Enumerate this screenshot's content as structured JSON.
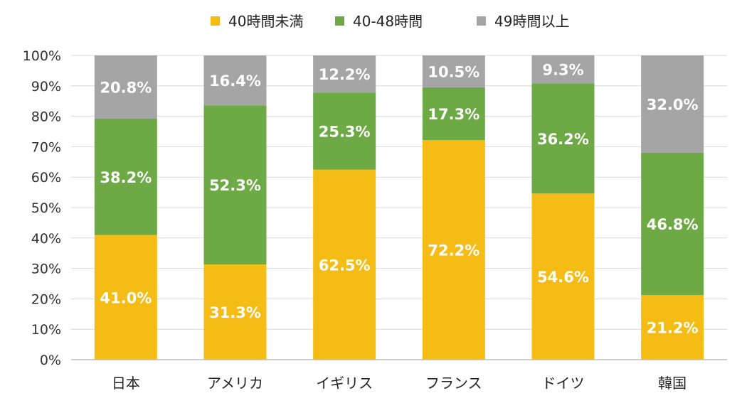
{
  "chart_data": {
    "type": "bar",
    "stacked": true,
    "percent": true,
    "categories": [
      "日本",
      "アメリカ",
      "イギリス",
      "フランス",
      "ドイツ",
      "韓国"
    ],
    "series": [
      {
        "name": "40時間未満",
        "values": [
          41.0,
          31.3,
          62.5,
          72.2,
          54.6,
          21.2
        ],
        "labels": [
          "41.0%",
          "31.3%",
          "62.5%",
          "72.2%",
          "54.6%",
          "21.2%"
        ],
        "color": "#F5BC16"
      },
      {
        "name": "40-48時間",
        "values": [
          38.2,
          52.3,
          25.3,
          17.3,
          36.2,
          46.8
        ],
        "labels": [
          "38.2%",
          "52.3%",
          "25.3%",
          "17.3%",
          "36.2%",
          "46.8%"
        ],
        "color": "#6DAA45"
      },
      {
        "name": "49時間以上",
        "values": [
          20.8,
          16.4,
          12.2,
          10.5,
          9.3,
          32.0
        ],
        "labels": [
          "20.8%",
          "16.4%",
          "12.2%",
          "10.5%",
          "9.3%",
          "32.0%"
        ],
        "color": "#A5A5A5"
      }
    ],
    "ylim": [
      0,
      100
    ],
    "yticks": [
      "0%",
      "10%",
      "20%",
      "30%",
      "40%",
      "50%",
      "60%",
      "70%",
      "80%",
      "90%",
      "100%"
    ],
    "grid": true,
    "legend_position": "top",
    "title": "",
    "xlabel": "",
    "ylabel": ""
  }
}
